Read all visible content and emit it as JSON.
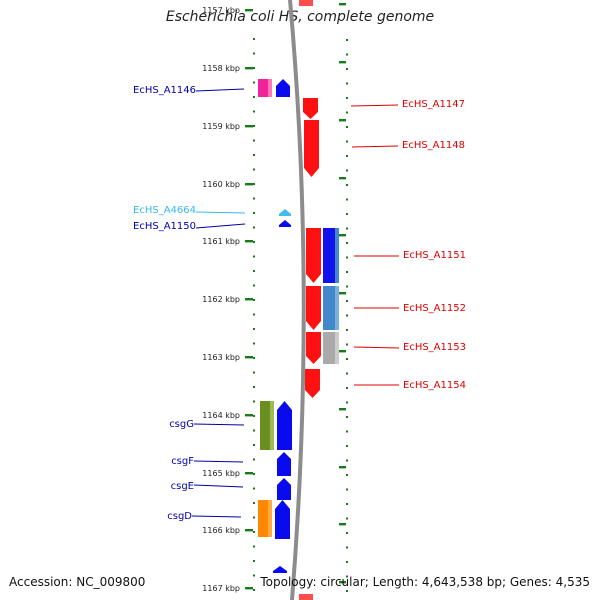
{
  "title": "Escherichia coli HS, complete genome",
  "footer": {
    "accession": "Accession: NC_009800",
    "summary": "Topology: circular; Length: 4,643,538 bp; Genes: 4,535"
  },
  "colors": {
    "ruler": "#1a7a1a",
    "backbone": "#8c8c8c",
    "left_label": "#0000aa",
    "left_label_light": "#33bbee",
    "right_label": "#dd0000"
  },
  "ruler_ticks": [
    "1157 kbp",
    "1158 kbp",
    "1159 kbp",
    "1160 kbp",
    "1161 kbp",
    "1162 kbp",
    "1163 kbp",
    "1164 kbp",
    "1165 kbp",
    "1166 kbp",
    "1167 kbp"
  ],
  "genes": [
    {
      "label": "EcHS_A1146",
      "side": "left",
      "color": "left_label"
    },
    {
      "label": "EcHS_A4664",
      "side": "left",
      "color": "left_label_light"
    },
    {
      "label": "EcHS_A1150",
      "side": "left",
      "color": "left_label"
    },
    {
      "label": "csgG",
      "side": "left",
      "color": "left_label"
    },
    {
      "label": "csgF",
      "side": "left",
      "color": "left_label"
    },
    {
      "label": "csgE",
      "side": "left",
      "color": "left_label"
    },
    {
      "label": "csgD",
      "side": "left",
      "color": "left_label"
    },
    {
      "label": "EcHS_A1147",
      "side": "right",
      "color": "right_label"
    },
    {
      "label": "EcHS_A1148",
      "side": "right",
      "color": "right_label"
    },
    {
      "label": "EcHS_A1151",
      "side": "right",
      "color": "right_label"
    },
    {
      "label": "EcHS_A1152",
      "side": "right",
      "color": "right_label"
    },
    {
      "label": "EcHS_A1153",
      "side": "right",
      "color": "right_label"
    },
    {
      "label": "EcHS_A1154",
      "side": "right",
      "color": "right_label"
    }
  ]
}
